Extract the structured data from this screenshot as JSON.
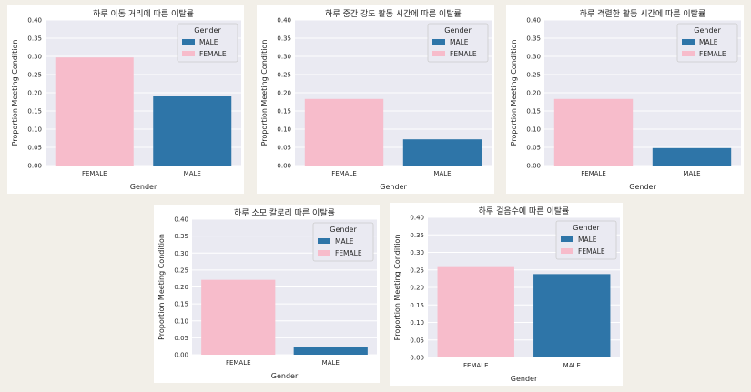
{
  "chart_data": [
    {
      "type": "bar",
      "title": "하루 이동 거리에 따른 이탈률",
      "xlabel": "Gender",
      "ylabel": "Proportion Meeting Condition",
      "categories": [
        "FEMALE",
        "MALE"
      ],
      "values": [
        0.297,
        0.19
      ],
      "colors": [
        "#f7bccb",
        "#2e75a8"
      ],
      "ylim": [
        0,
        0.4
      ],
      "yticks": [
        "0.00",
        "0.05",
        "0.10",
        "0.15",
        "0.20",
        "0.25",
        "0.30",
        "0.35",
        "0.40"
      ],
      "grid": true,
      "legend": {
        "title": "Gender",
        "placement": "top-right",
        "entries": [
          {
            "label": "MALE",
            "color": "#2e75a8"
          },
          {
            "label": "FEMALE",
            "color": "#f7bccb"
          }
        ]
      }
    },
    {
      "type": "bar",
      "title": "하루 중간 강도 활동 시간에 따른 이탈률",
      "xlabel": "Gender",
      "ylabel": "Proportion Meeting Condition",
      "categories": [
        "FEMALE",
        "MALE"
      ],
      "values": [
        0.183,
        0.072
      ],
      "colors": [
        "#f7bccb",
        "#2e75a8"
      ],
      "ylim": [
        0,
        0.4
      ],
      "yticks": [
        "0.00",
        "0.05",
        "0.10",
        "0.15",
        "0.20",
        "0.25",
        "0.30",
        "0.35",
        "0.40"
      ],
      "grid": true,
      "legend": {
        "title": "Gender",
        "placement": "top-right",
        "entries": [
          {
            "label": "MALE",
            "color": "#2e75a8"
          },
          {
            "label": "FEMALE",
            "color": "#f7bccb"
          }
        ]
      }
    },
    {
      "type": "bar",
      "title": "하루 격렬한 활동 시간에 따른 이탈률",
      "xlabel": "Gender",
      "ylabel": "Proportion Meeting Condition",
      "categories": [
        "FEMALE",
        "MALE"
      ],
      "values": [
        0.183,
        0.048
      ],
      "colors": [
        "#f7bccb",
        "#2e75a8"
      ],
      "ylim": [
        0,
        0.4
      ],
      "yticks": [
        "0.00",
        "0.05",
        "0.10",
        "0.15",
        "0.20",
        "0.25",
        "0.30",
        "0.35",
        "0.40"
      ],
      "grid": true,
      "legend": {
        "title": "Gender",
        "placement": "top-right",
        "entries": [
          {
            "label": "MALE",
            "color": "#2e75a8"
          },
          {
            "label": "FEMALE",
            "color": "#f7bccb"
          }
        ]
      }
    },
    {
      "type": "bar",
      "title": "하루 소모 칼로리 따른 이탈률",
      "xlabel": "Gender",
      "ylabel": "Proportion Meeting Condition",
      "categories": [
        "FEMALE",
        "MALE"
      ],
      "values": [
        0.221,
        0.023
      ],
      "colors": [
        "#f7bccb",
        "#2e75a8"
      ],
      "ylim": [
        0,
        0.4
      ],
      "yticks": [
        "0.00",
        "0.05",
        "0.10",
        "0.15",
        "0.20",
        "0.25",
        "0.30",
        "0.35",
        "0.40"
      ],
      "grid": true,
      "legend": {
        "title": "Gender",
        "placement": "top-right",
        "entries": [
          {
            "label": "MALE",
            "color": "#2e75a8"
          },
          {
            "label": "FEMALE",
            "color": "#f7bccb"
          }
        ]
      }
    },
    {
      "type": "bar",
      "title": "하루 걸음수에 따른 이탈률",
      "xlabel": "Gender",
      "ylabel": "Proportion Meeting Condition",
      "categories": [
        "FEMALE",
        "MALE"
      ],
      "values": [
        0.258,
        0.238
      ],
      "colors": [
        "#f7bccb",
        "#2e75a8"
      ],
      "ylim": [
        0,
        0.4
      ],
      "yticks": [
        "0.00",
        "0.05",
        "0.10",
        "0.15",
        "0.20",
        "0.25",
        "0.30",
        "0.35",
        "0.40"
      ],
      "grid": true,
      "legend": {
        "title": "Gender",
        "placement": "top-right",
        "entries": [
          {
            "label": "MALE",
            "color": "#2e75a8"
          },
          {
            "label": "FEMALE",
            "color": "#f7bccb"
          }
        ]
      }
    }
  ]
}
